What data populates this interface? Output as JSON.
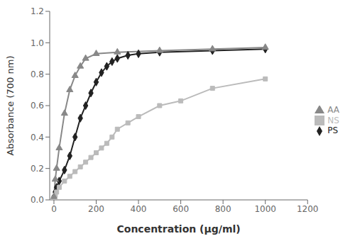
{
  "chart_data": {
    "type": "line",
    "xlabel": "Concentration (μg/ml)",
    "ylabel": "Absorbance (700 nm)",
    "xlim": [
      -20,
      1200
    ],
    "ylim": [
      0,
      1.2
    ],
    "xticks": [
      0,
      200,
      400,
      600,
      800,
      1000,
      1200
    ],
    "yticks": [
      {
        "value": 0,
        "label": "0.0"
      },
      0.2,
      0.4,
      0.6,
      0.8,
      {
        "value": 1.0,
        "label": "1.0"
      },
      1.2
    ],
    "grid": false,
    "legend": "right",
    "series": [
      {
        "name": "PS",
        "color": "#222222",
        "marker": "diamond",
        "x": [
          0,
          6.25,
          12.5,
          25,
          50,
          75,
          100,
          125,
          150,
          175,
          200,
          225,
          250,
          275,
          300,
          350,
          400,
          500,
          750,
          1000
        ],
        "values": [
          0.02,
          0.05,
          0.08,
          0.12,
          0.19,
          0.28,
          0.4,
          0.52,
          0.6,
          0.68,
          0.75,
          0.81,
          0.85,
          0.88,
          0.9,
          0.92,
          0.93,
          0.94,
          0.95,
          0.96
        ]
      },
      {
        "name": "NS",
        "color": "#bbbbbb",
        "marker": "square",
        "x": [
          0,
          6.25,
          12.5,
          25,
          50,
          75,
          100,
          125,
          150,
          175,
          200,
          225,
          250,
          275,
          300,
          350,
          400,
          500,
          600,
          750,
          1000
        ],
        "values": [
          0.01,
          0.03,
          0.05,
          0.08,
          0.12,
          0.15,
          0.18,
          0.21,
          0.24,
          0.27,
          0.3,
          0.33,
          0.36,
          0.4,
          0.45,
          0.49,
          0.53,
          0.6,
          0.63,
          0.71,
          0.77
        ]
      },
      {
        "name": "AA",
        "color": "#888888",
        "marker": "triangle",
        "x": [
          0,
          6.25,
          12.5,
          25,
          50,
          75,
          100,
          125,
          150,
          200,
          300,
          500,
          750,
          1000
        ],
        "values": [
          0.02,
          0.13,
          0.2,
          0.33,
          0.55,
          0.7,
          0.79,
          0.85,
          0.9,
          0.93,
          0.94,
          0.95,
          0.96,
          0.97
        ]
      }
    ]
  }
}
